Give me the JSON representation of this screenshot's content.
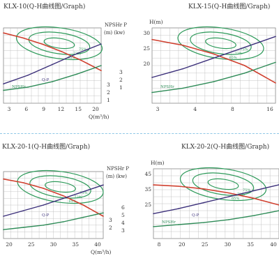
{
  "chart_data": [
    {
      "type": "line",
      "title": "KLX-10(Q-H曲线图/Graph)",
      "xlabel": "Q(m³/h)",
      "ylabel": "",
      "right_axis_header": [
        "NPSHr P",
        "(m)  (kw)"
      ],
      "xticks": [
        "3",
        "6",
        "9",
        "12",
        "15",
        "20"
      ],
      "y_left_ticks": [],
      "right_ticks_npsh": [
        "3",
        "2",
        "1"
      ],
      "right_ticks_power": [
        "3",
        "2",
        "1"
      ],
      "series": [
        {
          "name": "",
          "role": "Q-H",
          "color": "#d0402f",
          "points": [
            [
              0,
              28
            ],
            [
              4,
              26
            ],
            [
              8,
              23.5
            ],
            [
              12,
              20.5
            ],
            [
              16,
              17
            ],
            [
              20,
              13
            ]
          ]
        },
        {
          "name": "Q-P",
          "role": "Q-P",
          "color": "#3b2f7a",
          "points": [
            [
              0,
              0.9
            ],
            [
              5,
              1.3
            ],
            [
              10,
              1.8
            ],
            [
              15,
              2.3
            ],
            [
              20,
              2.75
            ]
          ]
        },
        {
          "name": "NPSHr",
          "role": "NPSHr",
          "color": "#2e8b57",
          "points": [
            [
              0,
              0.6
            ],
            [
              5,
              0.75
            ],
            [
              10,
              1.0
            ],
            [
              15,
              1.35
            ],
            [
              20,
              1.75
            ]
          ]
        }
      ],
      "efficiency_labels": [
        "75%",
        "72%",
        "65%"
      ],
      "curve_labels": [
        "Q-P",
        "NPSHr"
      ]
    },
    {
      "type": "line",
      "title": "KLX-15(Q-H曲线图/Graph)",
      "xlabel": "",
      "ylabel": "H(m)",
      "xticks": [
        "3",
        "4",
        "8",
        "16"
      ],
      "y_left_ticks": [
        "30",
        "25",
        "20"
      ],
      "series": [
        {
          "name": "",
          "role": "Q-H",
          "color": "#d0402f",
          "points": [
            [
              0,
              29
            ],
            [
              5,
              28
            ],
            [
              10,
              26.5
            ],
            [
              15,
              24.5
            ],
            [
              20,
              21.5
            ]
          ]
        },
        {
          "name": "",
          "role": "Q-P",
          "color": "#3b2f7a",
          "points": [
            [
              0,
              1.2
            ],
            [
              5,
              1.6
            ],
            [
              10,
              2.1
            ],
            [
              15,
              2.6
            ],
            [
              20,
              3.1
            ]
          ]
        },
        {
          "name": "NPSHr",
          "role": "NPSHr",
          "color": "#2e8b57",
          "points": [
            [
              0,
              0.5
            ],
            [
              5,
              0.7
            ],
            [
              10,
              1.0
            ],
            [
              15,
              1.4
            ],
            [
              20,
              1.9
            ]
          ]
        }
      ],
      "efficiency_labels": [
        "75%",
        "72%",
        "65%"
      ],
      "curve_labels": [
        "NPSHr"
      ]
    },
    {
      "type": "line",
      "title": "KLX-20-1(Q-H曲线图/Graph)",
      "xlabel": "Q(m³/h)",
      "ylabel": "",
      "right_axis_header": [
        "NPSHr P",
        "(m)  (kw)"
      ],
      "xticks": [
        "20",
        "25",
        "30",
        "35",
        "40"
      ],
      "y_left_ticks": [],
      "right_ticks_npsh": [
        "3",
        "2"
      ],
      "right_ticks_power": [
        "6",
        "5",
        "4",
        "3"
      ],
      "series": [
        {
          "name": "",
          "role": "Q-H",
          "color": "#d0402f",
          "points": [
            [
              15,
              34
            ],
            [
              20,
              33
            ],
            [
              25,
              31.5
            ],
            [
              30,
              29.5
            ],
            [
              35,
              27
            ],
            [
              40,
              24
            ]
          ]
        },
        {
          "name": "Q-P",
          "role": "Q-P",
          "color": "#3b2f7a",
          "points": [
            [
              15,
              3.0
            ],
            [
              20,
              3.5
            ],
            [
              25,
              4.0
            ],
            [
              30,
              4.6
            ],
            [
              35,
              5.2
            ],
            [
              40,
              5.8
            ]
          ]
        },
        {
          "name": "",
          "role": "NPSHr",
          "color": "#2e8b57",
          "points": [
            [
              15,
              1.8
            ],
            [
              20,
              2.0
            ],
            [
              25,
              2.2
            ],
            [
              30,
              2.5
            ],
            [
              35,
              2.9
            ],
            [
              40,
              3.3
            ]
          ]
        }
      ],
      "efficiency_labels": [
        "75%",
        "72%",
        "65%"
      ],
      "curve_labels": [
        "Q-P"
      ]
    },
    {
      "type": "line",
      "title": "KLX-20-2(Q-H曲线图/Graph)",
      "xlabel": "",
      "ylabel": "H(m)",
      "xticks": [
        "8",
        "20",
        "25",
        "30",
        "35",
        "40"
      ],
      "y_left_ticks": [
        "45",
        "35",
        "25"
      ],
      "series": [
        {
          "name": "",
          "role": "Q-H",
          "color": "#d0402f",
          "points": [
            [
              15,
              40
            ],
            [
              20,
              39.5
            ],
            [
              25,
              38.5
            ],
            [
              30,
              37
            ],
            [
              35,
              35
            ],
            [
              40,
              32.5
            ]
          ]
        },
        {
          "name": "Q-P",
          "role": "Q-P",
          "color": "#3b2f7a",
          "points": [
            [
              15,
              2.5
            ],
            [
              20,
              3.0
            ],
            [
              25,
              3.6
            ],
            [
              30,
              4.2
            ],
            [
              35,
              4.8
            ],
            [
              40,
              5.4
            ]
          ]
        },
        {
          "name": "NPSHr",
          "role": "NPSHr",
          "color": "#2e8b57",
          "points": [
            [
              15,
              1.2
            ],
            [
              20,
              1.4
            ],
            [
              25,
              1.6
            ],
            [
              30,
              1.9
            ],
            [
              35,
              2.3
            ],
            [
              40,
              2.8
            ]
          ]
        }
      ],
      "efficiency_labels": [
        "75%",
        "72%",
        "65%"
      ],
      "curve_labels": [
        "Q-P",
        "NPSHr"
      ]
    }
  ],
  "colors": {
    "head": "#d0402f",
    "efficiency": "#2e9a5a",
    "power": "#3b2f7a",
    "npsh": "#2e8b57",
    "grid": "#b8b8b8",
    "divider": "#8fc7e6"
  }
}
